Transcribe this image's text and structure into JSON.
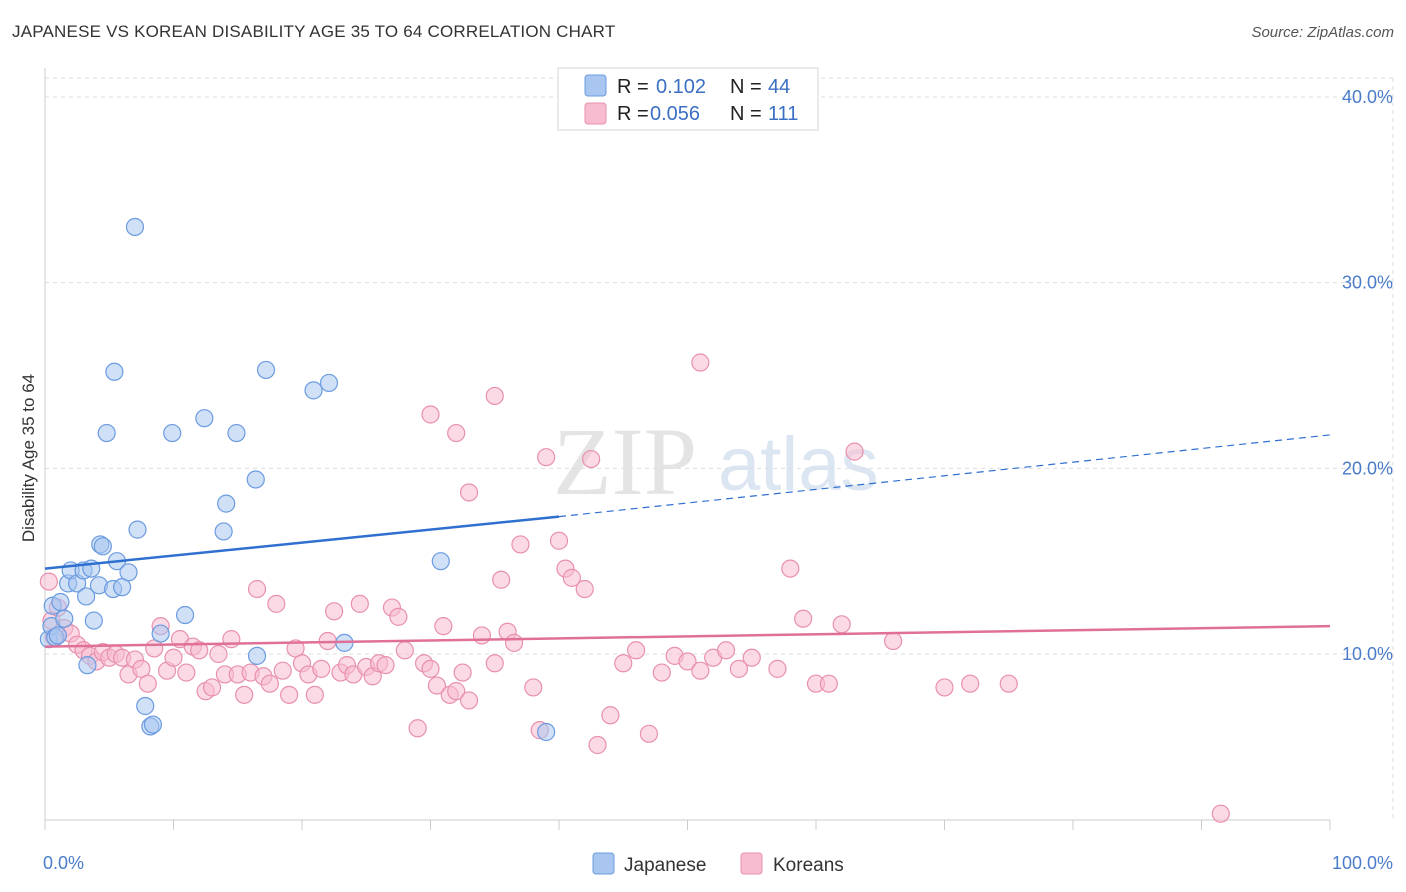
{
  "title": "JAPANESE VS KOREAN DISABILITY AGE 35 TO 64 CORRELATION CHART",
  "source": "Source: ZipAtlas.com",
  "watermark": {
    "zip": "ZIP",
    "atlas": "atlas"
  },
  "legend": {
    "r_label": "R =",
    "n_label": "N =",
    "rows": [
      {
        "series": "Japanese",
        "r": "0.102",
        "n": "44"
      },
      {
        "series": "Koreans",
        "r": "0.056",
        "n": "111"
      }
    ]
  },
  "colors": {
    "japanese_fill": "#a8c6f0",
    "japanese_stroke": "#6b9be0",
    "japanese_line": "#2f6fd0",
    "koreans_fill": "#f7bcd0",
    "koreans_stroke": "#e890ad",
    "koreans_line": "#e07098",
    "grid": "#dddddd",
    "tick_text": "#4a7cc9"
  },
  "chart_data": {
    "type": "scatter",
    "title": "JAPANESE VS KOREAN DISABILITY AGE 35 TO 64 CORRELATION CHART",
    "xlabel": "",
    "ylabel": "Disability Age 35 to 64",
    "xlim": [
      0,
      100
    ],
    "ylim": [
      0,
      40
    ],
    "x_tick_labels": [
      "0.0%",
      "100.0%"
    ],
    "y_ticks": [
      10,
      20,
      30,
      40
    ],
    "y_tick_labels": [
      "10.0%",
      "20.0%",
      "30.0%",
      "40.0%"
    ],
    "grid": true,
    "legend_position": "top-center",
    "series": [
      {
        "name": "Japanese",
        "r": 0.102,
        "n": 44,
        "trend": {
          "x": [
            0,
            40
          ],
          "y": [
            14.6,
            17.4
          ],
          "dashed_to": [
            100,
            21.8
          ]
        },
        "points": [
          [
            0.3,
            10.8
          ],
          [
            0.5,
            11.5
          ],
          [
            0.6,
            12.6
          ],
          [
            0.8,
            10.9
          ],
          [
            1.0,
            11.0
          ],
          [
            1.2,
            12.8
          ],
          [
            1.5,
            11.9
          ],
          [
            1.8,
            13.8
          ],
          [
            2.0,
            14.5
          ],
          [
            2.5,
            13.8
          ],
          [
            3.0,
            14.5
          ],
          [
            3.2,
            13.1
          ],
          [
            3.3,
            9.4
          ],
          [
            3.6,
            14.6
          ],
          [
            3.8,
            11.8
          ],
          [
            4.2,
            13.7
          ],
          [
            4.3,
            15.9
          ],
          [
            4.5,
            15.8
          ],
          [
            5.3,
            13.5
          ],
          [
            5.6,
            15.0
          ],
          [
            6.0,
            13.6
          ],
          [
            6.5,
            14.4
          ],
          [
            7.2,
            16.7
          ],
          [
            7.8,
            7.2
          ],
          [
            8.2,
            6.1
          ],
          [
            8.4,
            6.2
          ],
          [
            9.0,
            11.1
          ],
          [
            10.9,
            12.1
          ],
          [
            4.8,
            21.9
          ],
          [
            5.4,
            25.2
          ],
          [
            7.0,
            33.0
          ],
          [
            9.9,
            21.9
          ],
          [
            12.4,
            22.7
          ],
          [
            13.9,
            16.6
          ],
          [
            14.1,
            18.1
          ],
          [
            14.9,
            21.9
          ],
          [
            16.4,
            19.4
          ],
          [
            16.5,
            9.9
          ],
          [
            17.2,
            25.3
          ],
          [
            20.9,
            24.2
          ],
          [
            22.1,
            24.6
          ],
          [
            23.3,
            10.6
          ],
          [
            30.8,
            15.0
          ],
          [
            39.0,
            5.8
          ]
        ]
      },
      {
        "name": "Koreans",
        "r": 0.056,
        "n": 111,
        "trend": {
          "x": [
            0,
            100
          ],
          "y": [
            10.4,
            11.5
          ]
        },
        "points": [
          [
            0.3,
            13.9
          ],
          [
            0.5,
            11.8
          ],
          [
            0.7,
            10.9
          ],
          [
            1.0,
            12.5
          ],
          [
            1.5,
            11.4
          ],
          [
            2.0,
            11.1
          ],
          [
            2.5,
            10.5
          ],
          [
            3.0,
            10.2
          ],
          [
            3.5,
            9.9
          ],
          [
            4.0,
            9.6
          ],
          [
            4.5,
            10.1
          ],
          [
            5.0,
            9.8
          ],
          [
            5.5,
            10.0
          ],
          [
            6.0,
            9.8
          ],
          [
            6.5,
            8.9
          ],
          [
            7.0,
            9.7
          ],
          [
            7.5,
            9.2
          ],
          [
            8.0,
            8.4
          ],
          [
            8.5,
            10.3
          ],
          [
            9.0,
            11.5
          ],
          [
            9.5,
            9.1
          ],
          [
            10.0,
            9.8
          ],
          [
            10.5,
            10.8
          ],
          [
            11.0,
            9.0
          ],
          [
            11.5,
            10.4
          ],
          [
            12.0,
            10.2
          ],
          [
            12.5,
            8.0
          ],
          [
            13.0,
            8.2
          ],
          [
            13.5,
            10.0
          ],
          [
            14.0,
            8.9
          ],
          [
            14.5,
            10.8
          ],
          [
            15.0,
            8.9
          ],
          [
            15.5,
            7.8
          ],
          [
            16.0,
            9.0
          ],
          [
            16.5,
            13.5
          ],
          [
            17.0,
            8.8
          ],
          [
            17.5,
            8.4
          ],
          [
            18.0,
            12.7
          ],
          [
            18.5,
            9.1
          ],
          [
            19.0,
            7.8
          ],
          [
            19.5,
            10.3
          ],
          [
            20.0,
            9.5
          ],
          [
            20.5,
            8.9
          ],
          [
            21.0,
            7.8
          ],
          [
            21.5,
            9.2
          ],
          [
            22.0,
            10.7
          ],
          [
            22.5,
            12.3
          ],
          [
            23.0,
            9.0
          ],
          [
            23.5,
            9.4
          ],
          [
            24.0,
            8.9
          ],
          [
            24.5,
            12.7
          ],
          [
            25.0,
            9.3
          ],
          [
            25.5,
            8.8
          ],
          [
            26.0,
            9.5
          ],
          [
            26.5,
            9.4
          ],
          [
            27.0,
            12.5
          ],
          [
            27.5,
            12.0
          ],
          [
            28.0,
            10.2
          ],
          [
            29.0,
            6.0
          ],
          [
            29.5,
            9.5
          ],
          [
            30.0,
            9.2
          ],
          [
            30.5,
            8.3
          ],
          [
            31.0,
            11.5
          ],
          [
            31.5,
            7.8
          ],
          [
            32.0,
            8.0
          ],
          [
            32.5,
            9.0
          ],
          [
            33.0,
            7.5
          ],
          [
            34.0,
            11.0
          ],
          [
            35.0,
            9.5
          ],
          [
            35.5,
            14.0
          ],
          [
            36.0,
            11.2
          ],
          [
            36.5,
            10.6
          ],
          [
            37.0,
            15.9
          ],
          [
            38.0,
            8.2
          ],
          [
            38.5,
            5.9
          ],
          [
            39.0,
            20.6
          ],
          [
            40.0,
            16.1
          ],
          [
            40.5,
            14.6
          ],
          [
            41.0,
            14.1
          ],
          [
            42.0,
            13.5
          ],
          [
            42.5,
            20.5
          ],
          [
            43.0,
            5.1
          ],
          [
            44.0,
            6.7
          ],
          [
            45.0,
            9.5
          ],
          [
            46.0,
            10.2
          ],
          [
            47.0,
            5.7
          ],
          [
            48.0,
            9.0
          ],
          [
            49.0,
            9.9
          ],
          [
            50.0,
            9.6
          ],
          [
            51.0,
            9.1
          ],
          [
            52.0,
            9.8
          ],
          [
            53.0,
            10.2
          ],
          [
            54.0,
            9.2
          ],
          [
            55.0,
            9.8
          ],
          [
            57.0,
            9.2
          ],
          [
            58.0,
            14.6
          ],
          [
            59.0,
            11.9
          ],
          [
            60.0,
            8.4
          ],
          [
            61.0,
            8.4
          ],
          [
            62.0,
            11.6
          ],
          [
            63.0,
            20.9
          ],
          [
            66.0,
            10.7
          ],
          [
            70.0,
            8.2
          ],
          [
            72.0,
            8.4
          ],
          [
            75.0,
            8.4
          ],
          [
            91.5,
            1.4
          ],
          [
            30.0,
            22.9
          ],
          [
            32.0,
            21.9
          ],
          [
            35.0,
            23.9
          ],
          [
            33.0,
            18.7
          ],
          [
            51.0,
            25.7
          ]
        ]
      }
    ]
  }
}
